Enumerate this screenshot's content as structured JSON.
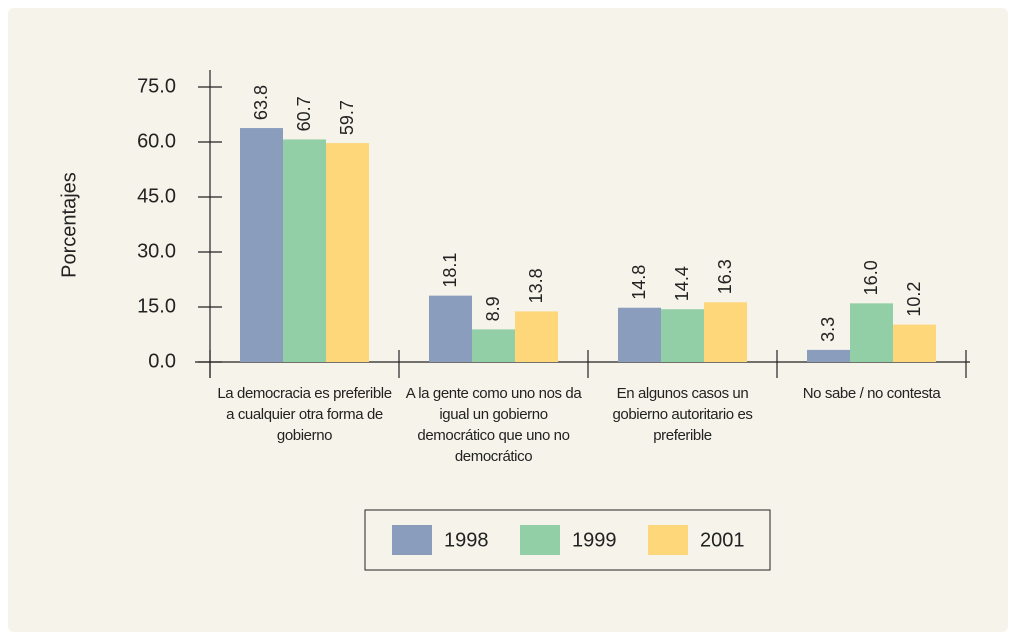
{
  "chart_data": {
    "type": "bar",
    "ylabel": "Porcentajes",
    "categories": [
      "La democracia es preferible a cualquier otra forma de gobierno",
      "A la gente como uno nos da igual un gobierno democrático que uno no democrático",
      "En algunos casos un gobierno autoritario es preferible",
      "No sabe / no contesta"
    ],
    "series": [
      {
        "name": "1998",
        "color": "#8a9dbd",
        "values": [
          63.8,
          18.1,
          14.8,
          3.3
        ],
        "value_labels": [
          "63.8",
          "18.1",
          "14.8",
          "3.3"
        ]
      },
      {
        "name": "1999",
        "color": "#93cfa6",
        "values": [
          60.7,
          8.9,
          14.4,
          16.0
        ],
        "value_labels": [
          "60.7",
          "8.9",
          "14.4",
          "16.0"
        ]
      },
      {
        "name": "2001",
        "color": "#fdd77a",
        "values": [
          59.7,
          13.8,
          16.3,
          10.2
        ],
        "value_labels": [
          "59.7",
          "13.8",
          "16.3",
          "10.2"
        ]
      }
    ],
    "ylim": [
      0,
      75
    ],
    "yticks": [
      {
        "value": 0,
        "label": "0.0"
      },
      {
        "value": 15,
        "label": "15.0"
      },
      {
        "value": 30,
        "label": "30.0"
      },
      {
        "value": 45,
        "label": "45.0"
      },
      {
        "value": 60,
        "label": "60.0"
      },
      {
        "value": 75,
        "label": "75.0"
      }
    ],
    "legend": "bottom"
  }
}
